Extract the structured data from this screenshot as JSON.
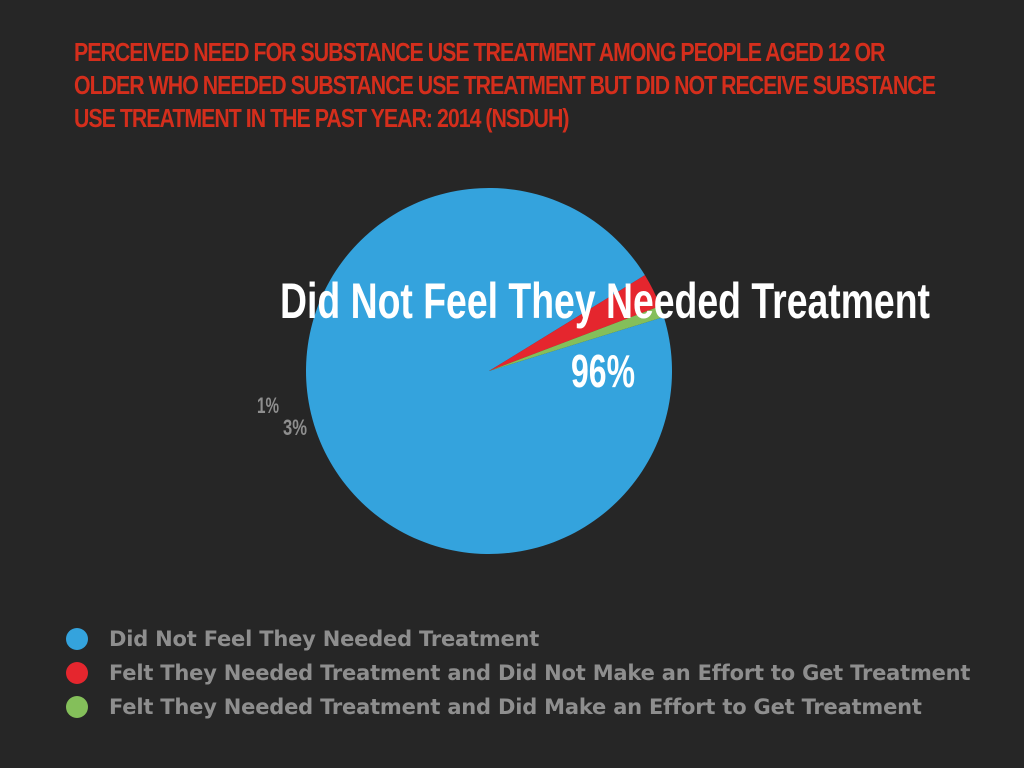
{
  "title_lines": [
    "PERCEIVED NEED FOR SUBSTANCE USE TREATMENT AMONG PEOPLE AGED 12 OR",
    "OLDER WHO NEEDED SUBSTANCE USE TREATMENT BUT DID NOT RECEIVE SUBSTANCE",
    "USE TREATMENT IN THE PAST YEAR: 2014 (NSDUH)"
  ],
  "colors": {
    "background": "#262626",
    "title": "#d42e1c",
    "label_white": "#ffffff",
    "label_gray": "#8e8e8e"
  },
  "chart_data": {
    "type": "pie",
    "title": "PERCEIVED NEED FOR SUBSTANCE USE TREATMENT AMONG PEOPLE AGED 12 OR OLDER WHO NEEDED SUBSTANCE USE TREATMENT BUT DID NOT RECEIVE SUBSTANCE USE TREATMENT IN THE PAST YEAR: 2014 (NSDUH)",
    "legend_position": "bottom-left",
    "slices": [
      {
        "label": "Did Not Feel They Needed Treatment",
        "value": 96,
        "value_label": "96%",
        "color": "#34a3dd"
      },
      {
        "label": "Felt They Needed Treatment and Did Not Make an Effort to Get Treatment",
        "value": 3,
        "value_label": "3%",
        "color": "#e5262e"
      },
      {
        "label": "Felt They Needed Treatment and Did Make an Effort to Get Treatment",
        "value": 1,
        "value_label": "1%",
        "color": "#84bf5a"
      }
    ],
    "slice_name_label": "Did Not Feel They Needed Treatment"
  }
}
